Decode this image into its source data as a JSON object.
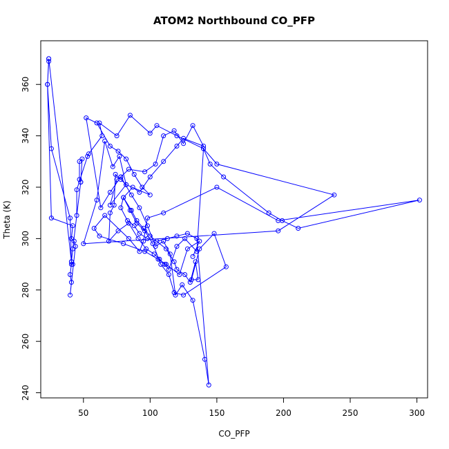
{
  "chart_data": {
    "type": "line",
    "title": "ATOM2 Northbound CO_PFP",
    "xlabel": "CO_PFP",
    "ylabel": "Theta (K)",
    "xlim": [
      18,
      308
    ],
    "ylim": [
      238,
      377
    ],
    "x_ticks": [
      50,
      100,
      150,
      200,
      250,
      300
    ],
    "y_ticks": [
      240,
      260,
      280,
      300,
      320,
      340,
      360
    ],
    "grid": false,
    "color": "#0000ff",
    "marker": "open-circle",
    "series": [
      {
        "x": [
          24,
          24,
          23,
          26,
          40,
          41,
          42,
          41,
          40,
          41,
          40,
          44,
          43,
          41,
          42,
          26,
          23,
          24,
          41,
          42,
          48,
          47,
          47,
          49,
          48,
          45,
          45,
          53,
          54,
          64,
          62,
          75,
          85,
          100,
          105,
          120,
          140,
          150,
          238,
          196,
          50,
          60,
          66,
          72,
          77,
          82,
          70,
          75,
          78,
          84,
          96,
          104,
          110,
          118,
          125,
          132,
          140,
          125,
          120,
          110,
          100,
          92,
          87,
          80,
          86,
          90,
          95,
          100,
          112,
          118,
          120,
          126,
          130,
          134,
          136,
          131,
          137,
          148,
          157,
          125,
          118,
          114,
          108,
          102,
          96,
          90,
          85,
          80,
          78,
          83,
          88,
          92,
          98,
          105,
          113,
          120,
          128,
          135,
          144,
          141,
          132,
          124,
          119,
          115,
          110,
          104,
          98,
          92,
          86,
          78,
          70,
          63,
          52,
          60,
          70,
          76,
          82,
          88,
          94,
          100,
          82,
          78,
          74,
          73,
          70,
          69,
          76,
          84,
          91,
          97,
          103,
          107,
          111,
          114,
          120,
          126,
          135,
          140,
          145,
          155,
          189,
          199,
          211,
          302,
          196,
          150,
          110,
          98,
          95,
          92,
          84,
          66,
          58,
          62,
          80,
          96,
          106,
          112,
          122,
          128,
          137,
          132
        ],
        "y": [
          370,
          369,
          360,
          335,
          308,
          291,
          290,
          290,
          286,
          283,
          278,
          297,
          299,
          300,
          305,
          308,
          360,
          370,
          291,
          296,
          322,
          323,
          330,
          331,
          322,
          309,
          319,
          332,
          333,
          340,
          345,
          340,
          348,
          341,
          344,
          340,
          335,
          329,
          317,
          303,
          298,
          315,
          338,
          328,
          332,
          321,
          313,
          323,
          324,
          327,
          326,
          329,
          340,
          342,
          337,
          344,
          336,
          339,
          336,
          330,
          324,
          318,
          320,
          316,
          311,
          307,
          304,
          301,
          296,
          291,
          288,
          286,
          283,
          291,
          284,
          284,
          296,
          302,
          289,
          278,
          279,
          286,
          290,
          298,
          303,
          306,
          311,
          316,
          312,
          307,
          305,
          302,
          300,
          299,
          300,
          301,
          302,
          300,
          243,
          253,
          276,
          282,
          278,
          294,
          299,
          297,
          305,
          312,
          317,
          324,
          318,
          312,
          347,
          345,
          336,
          334,
          331,
          325,
          320,
          317,
          321,
          323,
          325,
          313,
          310,
          299,
          303,
          306,
          300,
          296,
          294,
          292,
          290,
          288,
          297,
          300,
          295,
          335,
          329,
          324,
          310,
          307,
          304,
          315,
          307,
          320,
          310,
          308,
          299,
          295,
          300,
          309,
          304,
          301,
          298,
          295,
          292,
          290,
          286,
          296,
          299,
          293
        ]
      }
    ]
  }
}
